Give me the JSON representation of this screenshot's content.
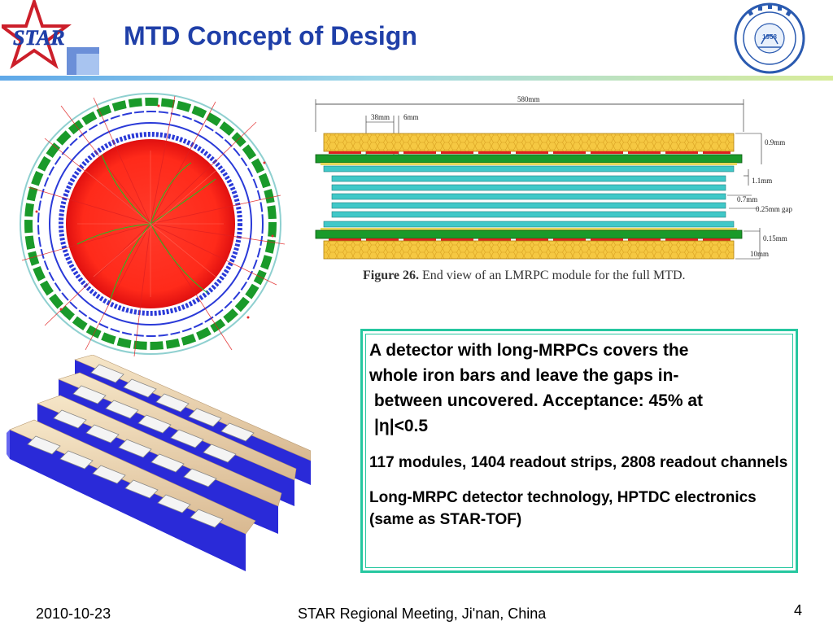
{
  "slide": {
    "title": "MTD Concept of Design",
    "logos": {
      "left": "STAR",
      "right_year": "1958"
    }
  },
  "figure": {
    "dimensions": {
      "total_width": "580mm",
      "pad_width": "38mm",
      "pad_gap": "6mm",
      "d1": "0.9mm",
      "d2": "1.1mm",
      "d3": "0.7mm",
      "d4": "0.25mm gap",
      "d5": "0.15mm",
      "d6": "10mm"
    },
    "caption_label": "Figure 26.",
    "caption_text": "End view of an LMRPC module for the full MTD."
  },
  "textbox": {
    "line1": "A detector with long-MRPCs covers the",
    "line2": "whole iron bars and leave the gaps in-",
    "line3": " between uncovered. Acceptance: 45% at",
    "line4": "|η|<0.5",
    "para2": "117 modules, 1404 readout strips, 2808 readout channels",
    "para3": "Long-MRPC detector technology, HPTDC electronics (same as STAR-TOF)"
  },
  "footer": {
    "date": "2010-10-23",
    "meeting": "STAR Regional Meeting, Ji'nan, China",
    "page": "4"
  },
  "colors": {
    "title": "#1f3fa8",
    "textbox_border": "#26c7a0",
    "honeycomb": "#f5c842",
    "pcb_green": "#1a9a2a",
    "glass_cyan": "#40c8c8"
  }
}
